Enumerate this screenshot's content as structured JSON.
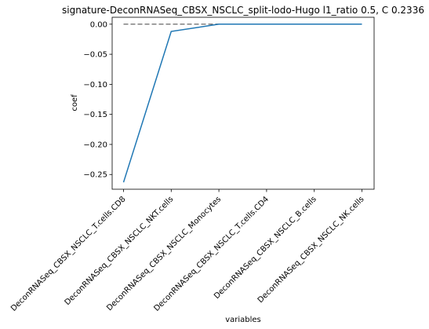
{
  "chart_data": {
    "type": "line",
    "title": "signature-DeconRNASeq_CBSX_NSCLC_split-lodo-Hugo l1_ratio 0.5, C 0.2336",
    "xlabel": "variables",
    "ylabel": "coef",
    "categories": [
      "DeconRNASeq_CBSX_NSCLC_T.cells.CD8",
      "DeconRNASeq_CBSX_NSCLC_NKT.cells",
      "DeconRNASeq_CBSX_NSCLC_Monocytes",
      "DeconRNASeq_CBSX_NSCLC_T.cells.CD4",
      "DeconRNASeq_CBSX_NSCLC_B.cells",
      "DeconRNASeq_CBSX_NSCLC_NK.cells"
    ],
    "series": [
      {
        "values": [
          -0.263,
          -0.012,
          0.0,
          0.0,
          0.0,
          0.0
        ],
        "color": "#1f77b4"
      }
    ],
    "reference_line": {
      "y": 0.0,
      "style": "dashed",
      "color": "#808080"
    },
    "yticks": [
      0.0,
      -0.05,
      -0.1,
      -0.15,
      -0.2,
      -0.25
    ],
    "ytick_labels": [
      "0.00",
      "−0.05",
      "−0.10",
      "−0.15",
      "−0.20",
      "−0.25"
    ],
    "ylim": [
      -0.2745,
      0.0115
    ],
    "grid": false
  }
}
